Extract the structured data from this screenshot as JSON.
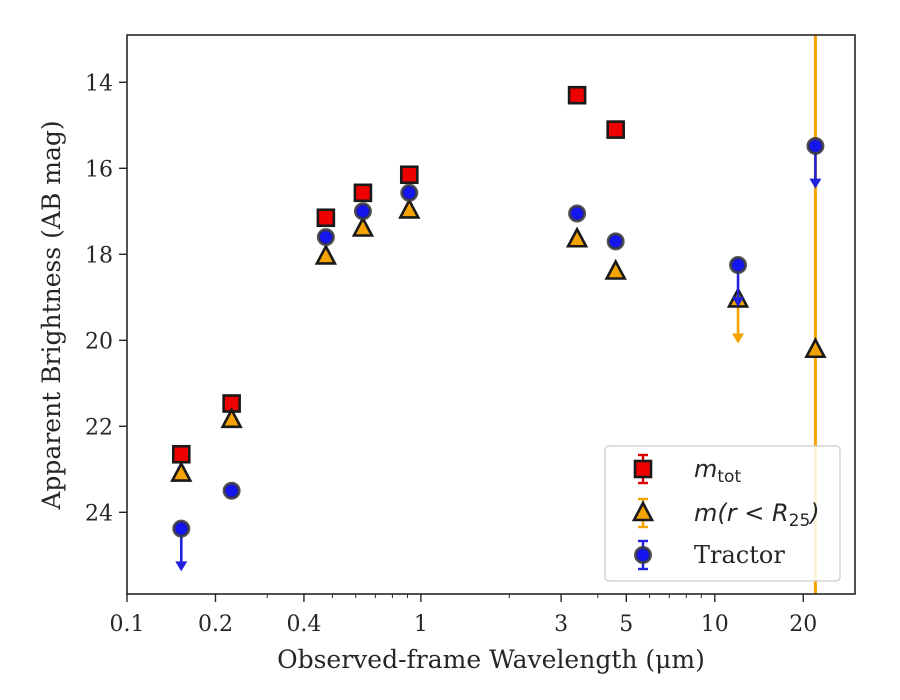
{
  "chart_data": {
    "type": "scatter",
    "title": "",
    "xlabel": "Observed-frame Wavelength (μm)",
    "ylabel": "Apparent Brightness (AB mag)",
    "xscale": "log",
    "xlim": [
      0.1,
      30
    ],
    "ylim": [
      25.9,
      12.9
    ],
    "y_inverted": true,
    "grid": false,
    "legend_position": "lower-right",
    "xticks": [
      {
        "value": 0.1,
        "label": "0.1"
      },
      {
        "value": 0.2,
        "label": "0.2"
      },
      {
        "value": 0.4,
        "label": "0.4"
      },
      {
        "value": 1,
        "label": "1"
      },
      {
        "value": 3,
        "label": "3"
      },
      {
        "value": 5,
        "label": "5"
      },
      {
        "value": 10,
        "label": "10"
      },
      {
        "value": 20,
        "label": "20"
      }
    ],
    "yticks": [
      {
        "value": 14,
        "label": "14"
      },
      {
        "value": 16,
        "label": "16"
      },
      {
        "value": 18,
        "label": "18"
      },
      {
        "value": 20,
        "label": "20"
      },
      {
        "value": 22,
        "label": "22"
      },
      {
        "value": 24,
        "label": "24"
      }
    ],
    "vline": {
      "x": 22.0,
      "color": "#f5a300"
    },
    "series": [
      {
        "name": "m_tot",
        "legend_main": "m",
        "legend_sub": "tot",
        "marker": "square",
        "color": "#ee0000",
        "errcolor": "#dd0000",
        "points": [
          {
            "x": 0.153,
            "y": 22.65
          },
          {
            "x": 0.227,
            "y": 21.47
          },
          {
            "x": 0.475,
            "y": 17.15
          },
          {
            "x": 0.635,
            "y": 16.57
          },
          {
            "x": 0.913,
            "y": 16.15
          },
          {
            "x": 3.4,
            "y": 14.3
          },
          {
            "x": 4.6,
            "y": 15.1
          }
        ]
      },
      {
        "name": "m(r < R25)",
        "legend_main": "m(r < R",
        "legend_sub": "25",
        "legend_close": ")",
        "marker": "triangle",
        "color": "#f5a300",
        "errcolor": "#f5a300",
        "points": [
          {
            "x": 0.153,
            "y": 23.1
          },
          {
            "x": 0.227,
            "y": 21.85
          },
          {
            "x": 0.475,
            "y": 18.05
          },
          {
            "x": 0.635,
            "y": 17.4
          },
          {
            "x": 0.913,
            "y": 16.98
          },
          {
            "x": 3.4,
            "y": 17.65
          },
          {
            "x": 4.6,
            "y": 18.4
          },
          {
            "x": 12.0,
            "y": 19.05,
            "upper_limit_to": 20.05
          },
          {
            "x": 22.0,
            "y": 20.22
          }
        ]
      },
      {
        "name": "Tractor",
        "legend_main": "Tractor",
        "marker": "circle",
        "color": "#1515ee",
        "errcolor": "#2222dd",
        "points": [
          {
            "x": 0.153,
            "y": 24.38,
            "upper_limit_to": 25.35
          },
          {
            "x": 0.227,
            "y": 23.5
          },
          {
            "x": 0.475,
            "y": 17.6
          },
          {
            "x": 0.635,
            "y": 17.0
          },
          {
            "x": 0.913,
            "y": 16.57
          },
          {
            "x": 3.4,
            "y": 17.05
          },
          {
            "x": 4.6,
            "y": 17.7
          },
          {
            "x": 12.0,
            "y": 18.25,
            "upper_limit_to": 19.2
          },
          {
            "x": 22.0,
            "y": 15.48,
            "upper_limit_to": 16.45
          }
        ]
      }
    ]
  }
}
